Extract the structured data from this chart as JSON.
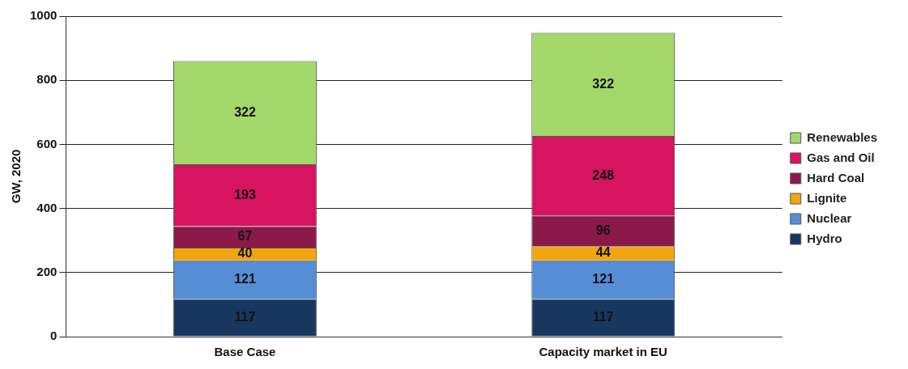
{
  "chart_data": {
    "type": "bar",
    "stacked": true,
    "ylabel": "GW, 2020",
    "categories": [
      "Base Case",
      "Capacity market in EU"
    ],
    "series": [
      {
        "name": "Hydro",
        "color": "#17375e",
        "values": [
          117,
          117
        ]
      },
      {
        "name": "Nuclear",
        "color": "#558ed5",
        "values": [
          121,
          121
        ]
      },
      {
        "name": "Lignite",
        "color": "#f2a50c",
        "values": [
          40,
          44
        ]
      },
      {
        "name": "Hard Coal",
        "color": "#8b1a4a",
        "values": [
          67,
          96
        ]
      },
      {
        "name": "Gas and Oil",
        "color": "#d6145f",
        "values": [
          193,
          248
        ]
      },
      {
        "name": "Renewables",
        "color": "#a3d86a",
        "values": [
          322,
          322
        ]
      }
    ],
    "ylim": [
      0,
      1000
    ],
    "yticks": [
      0,
      200,
      400,
      600,
      800,
      1000
    ],
    "grid": "y",
    "legend": "right",
    "data_labels": true
  }
}
